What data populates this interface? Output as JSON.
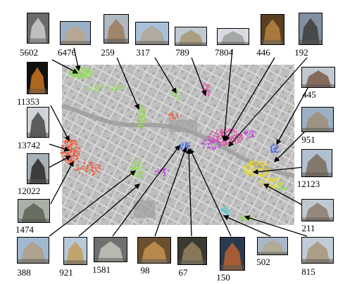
{
  "landmarks": [
    {
      "id": "a",
      "label": "5602"
    },
    {
      "id": "b",
      "label": "6476"
    },
    {
      "id": "c",
      "label": "259"
    },
    {
      "id": "d",
      "label": "317"
    },
    {
      "id": "e",
      "label": "789"
    },
    {
      "id": "f",
      "label": "7804"
    },
    {
      "id": "g",
      "label": "446"
    },
    {
      "id": "h",
      "label": "192"
    },
    {
      "id": "i",
      "label": "11353"
    },
    {
      "id": "j",
      "label": "445"
    },
    {
      "id": "k",
      "label": "13742"
    },
    {
      "id": "l",
      "label": "951"
    },
    {
      "id": "m",
      "label": "12022"
    },
    {
      "id": "n",
      "label": "12123"
    },
    {
      "id": "o",
      "label": "1474"
    },
    {
      "id": "p",
      "label": "211"
    },
    {
      "id": "q",
      "label": "388"
    },
    {
      "id": "r",
      "label": "921"
    },
    {
      "id": "s",
      "label": "1581"
    },
    {
      "id": "t",
      "label": "98"
    },
    {
      "id": "u",
      "label": "67"
    },
    {
      "id": "v",
      "label": "150"
    },
    {
      "id": "w",
      "label": "502"
    },
    {
      "id": "x",
      "label": "815"
    }
  ],
  "colors": {
    "map_base": "#b9b9b9",
    "clusters": [
      "#8ee04a",
      "#f05030",
      "#e040a0",
      "#f0e020",
      "#4060e0",
      "#30d0d0",
      "#c040e0"
    ]
  }
}
